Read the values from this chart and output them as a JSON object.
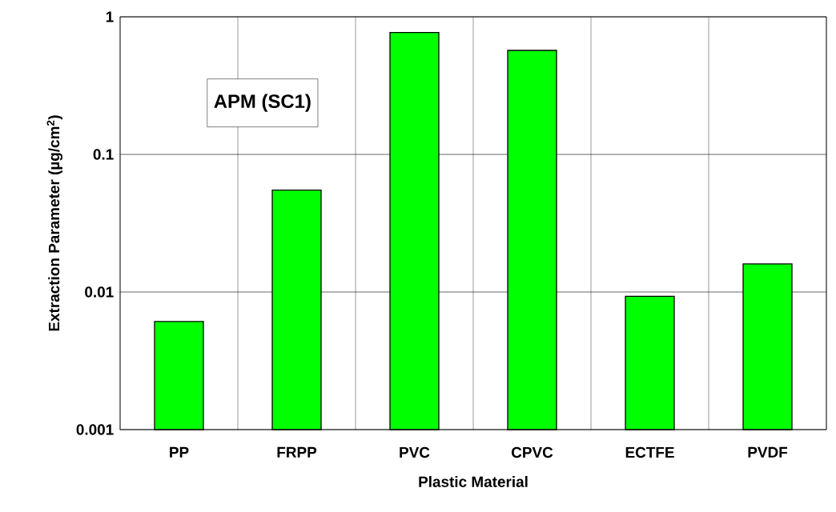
{
  "chart_data": {
    "type": "bar",
    "xlabel": "Plastic Material",
    "ylabel": "Extraction Parameter (µg/cm$^{2}$)",
    "categories": [
      "PP",
      "FRPP",
      "PVC",
      "CPVC",
      "ECTFE",
      "PVDF"
    ],
    "values": [
      0.0061,
      0.055,
      0.77,
      0.57,
      0.0093,
      0.016
    ],
    "color": "#00ff00",
    "log": "y",
    "ylim": [
      0.001,
      1
    ],
    "yticks": [
      0.001,
      0.01,
      0.1,
      1
    ],
    "grid": true,
    "annotations": [
      "APM (SC1)"
    ]
  }
}
